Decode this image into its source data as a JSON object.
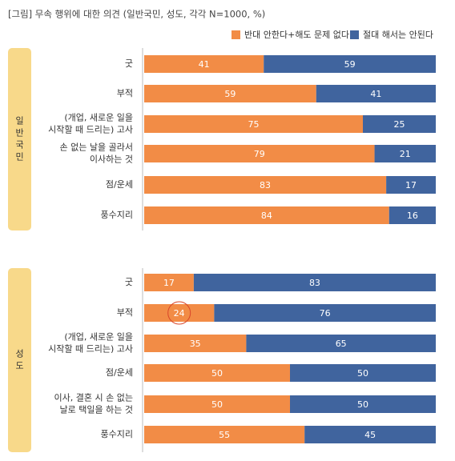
{
  "title": "[그림] 무속 행위에 대한 의견 (일반국민, 성도, 각각 N=1000, %)",
  "chart_data": [
    {
      "type": "bar",
      "orientation": "horizontal",
      "stacked": true,
      "title": "일반국민",
      "categories": [
        "굿",
        "부적",
        "(개업, 새로운 일을\n시작할 때 드리는) 고사",
        "손 없는 날을 골라서\n이사하는 것",
        "점/운세",
        "풍수지리"
      ],
      "series": [
        {
          "name": "반대 안한다+해도 문제 없다",
          "color": "#f28c46",
          "values": [
            41,
            59,
            75,
            79,
            83,
            84
          ]
        },
        {
          "name": "절대 해서는 안된다",
          "color": "#40649e",
          "values": [
            59,
            41,
            25,
            21,
            17,
            16
          ]
        }
      ],
      "xlim": [
        0,
        100
      ]
    },
    {
      "type": "bar",
      "orientation": "horizontal",
      "stacked": true,
      "title": "성도",
      "categories": [
        "굿",
        "부적",
        "(개업, 새로운 일을\n시작할 때 드리는) 고사",
        "점/운세",
        "이사, 결혼 시 손 없는\n날로 택일을 하는 것",
        "풍수지리"
      ],
      "series": [
        {
          "color": "#f28c46",
          "values": [
            17,
            24,
            35,
            50,
            50,
            55
          ]
        },
        {
          "color": "#40649e",
          "values": [
            83,
            76,
            65,
            50,
            50,
            45
          ]
        }
      ],
      "xlim": [
        0,
        100
      ],
      "highlight": {
        "series": 0,
        "index": 1
      }
    }
  ]
}
